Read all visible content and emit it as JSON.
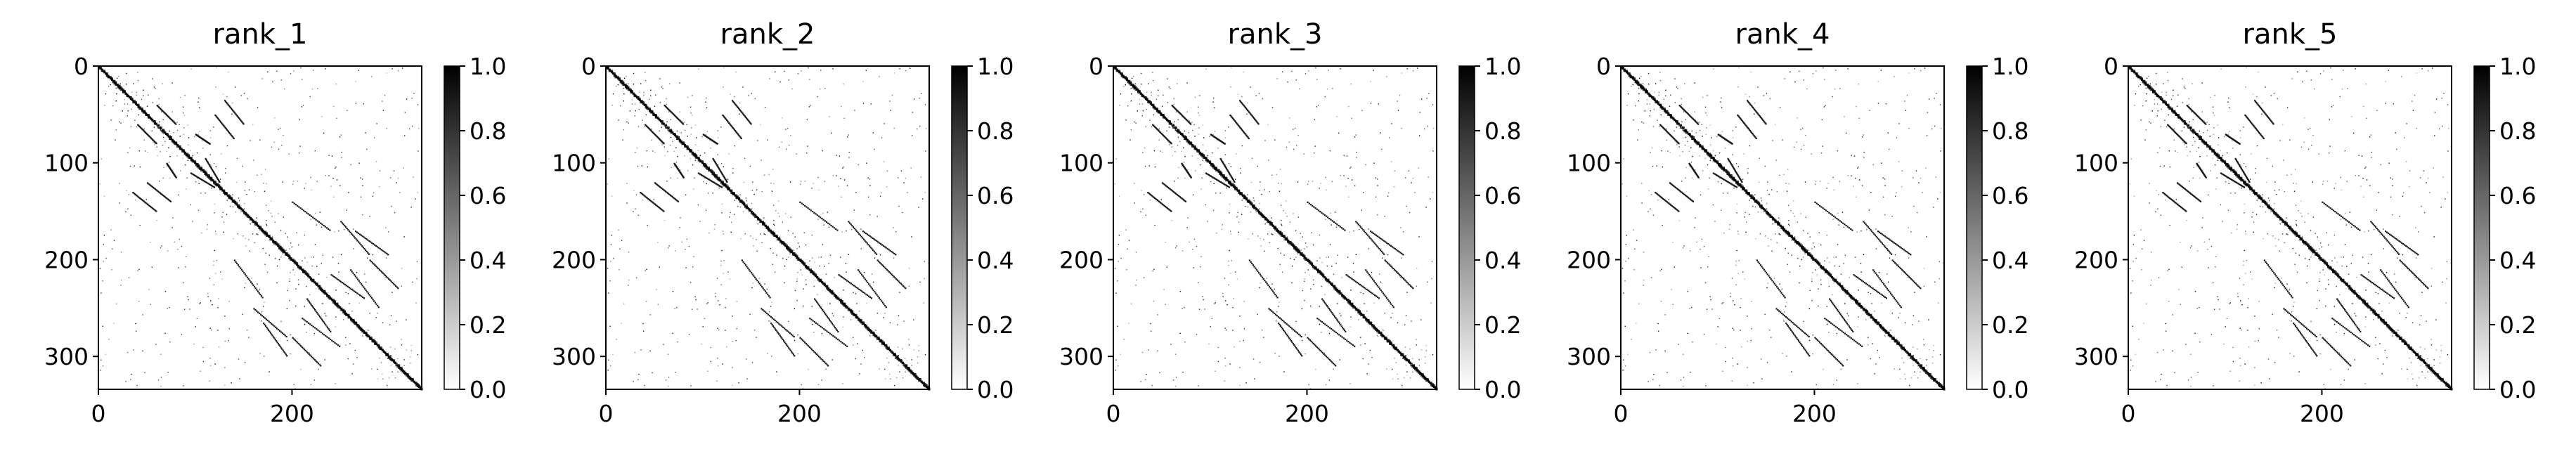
{
  "chart_data": [
    {
      "type": "heatmap",
      "title": "rank_1",
      "x_ticks": [
        0,
        200
      ],
      "y_ticks": [
        0,
        100,
        200,
        300
      ],
      "xlim": [
        0,
        334
      ],
      "ylim": [
        334,
        0
      ],
      "colorbar": {
        "ticks": [
          "0.0",
          "0.2",
          "0.4",
          "0.6",
          "0.8",
          "1.0"
        ],
        "range": [
          0.0,
          1.0
        ],
        "colormap": "gray_r"
      },
      "matrix_size": 334
    },
    {
      "type": "heatmap",
      "title": "rank_2",
      "x_ticks": [
        0,
        200
      ],
      "y_ticks": [
        0,
        100,
        200,
        300
      ],
      "xlim": [
        0,
        334
      ],
      "ylim": [
        334,
        0
      ],
      "colorbar": {
        "ticks": [
          "0.0",
          "0.2",
          "0.4",
          "0.6",
          "0.8",
          "1.0"
        ],
        "range": [
          0.0,
          1.0
        ],
        "colormap": "gray_r"
      },
      "matrix_size": 334
    },
    {
      "type": "heatmap",
      "title": "rank_3",
      "x_ticks": [
        0,
        200
      ],
      "y_ticks": [
        0,
        100,
        200,
        300
      ],
      "xlim": [
        0,
        334
      ],
      "ylim": [
        334,
        0
      ],
      "colorbar": {
        "ticks": [
          "0.0",
          "0.2",
          "0.4",
          "0.6",
          "0.8",
          "1.0"
        ],
        "range": [
          0.0,
          1.0
        ],
        "colormap": "gray_r"
      },
      "matrix_size": 334
    },
    {
      "type": "heatmap",
      "title": "rank_4",
      "x_ticks": [
        0,
        200
      ],
      "y_ticks": [
        0,
        100,
        200,
        300
      ],
      "xlim": [
        0,
        334
      ],
      "ylim": [
        334,
        0
      ],
      "colorbar": {
        "ticks": [
          "0.0",
          "0.2",
          "0.4",
          "0.6",
          "0.8",
          "1.0"
        ],
        "range": [
          0.0,
          1.0
        ],
        "colormap": "gray_r"
      },
      "matrix_size": 334
    },
    {
      "type": "heatmap",
      "title": "rank_5",
      "x_ticks": [
        0,
        200
      ],
      "y_ticks": [
        0,
        100,
        200,
        300
      ],
      "xlim": [
        0,
        334
      ],
      "ylim": [
        334,
        0
      ],
      "colorbar": {
        "ticks": [
          "0.0",
          "0.2",
          "0.4",
          "0.6",
          "0.8",
          "1.0"
        ],
        "range": [
          0.0,
          1.0
        ],
        "colormap": "gray_r"
      },
      "matrix_size": 334
    }
  ],
  "colors": {
    "background": "#ffffff",
    "ink": "#000000"
  }
}
